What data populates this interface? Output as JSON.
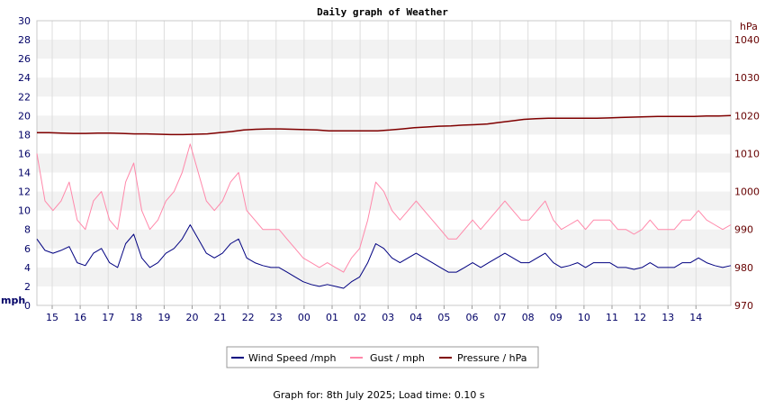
{
  "chart_data": {
    "type": "line",
    "title": "Daily graph of Weather",
    "left_axis": {
      "unit": "mph",
      "ylim": [
        0,
        30
      ],
      "ticks": [
        "0",
        "2",
        "4",
        "6",
        "8",
        "10",
        "12",
        "14",
        "16",
        "18",
        "20",
        "22",
        "24",
        "26",
        "28",
        "30"
      ],
      "color": "#000066"
    },
    "right_axis": {
      "unit": "hPa",
      "ylim": [
        970,
        1045
      ],
      "ticks": [
        "970",
        "980",
        "990",
        "1000",
        "1010",
        "1020",
        "1030",
        "1040"
      ],
      "color": "#660000"
    },
    "x_ticks": [
      "15",
      "16",
      "17",
      "18",
      "19",
      "20",
      "21",
      "22",
      "23",
      "00",
      "01",
      "02",
      "03",
      "04",
      "05",
      "06",
      "07",
      "08",
      "09",
      "10",
      "11",
      "12",
      "13",
      "14"
    ],
    "grid": true,
    "series": [
      {
        "name": "Wind Speed /mph",
        "color": "#000080",
        "axis": "left",
        "values": [
          7.0,
          5.8,
          5.5,
          5.8,
          6.2,
          4.5,
          4.2,
          5.5,
          6.0,
          4.5,
          4.0,
          6.5,
          7.5,
          5.0,
          4.0,
          4.5,
          5.5,
          6.0,
          7.0,
          8.5,
          7.0,
          5.5,
          5.0,
          5.5,
          6.5,
          7.0,
          5.0,
          4.5,
          4.2,
          4.0,
          4.0,
          3.5,
          3.0,
          2.5,
          2.2,
          2.0,
          2.2,
          2.0,
          1.8,
          2.5,
          3.0,
          4.5,
          6.5,
          6.0,
          5.0,
          4.5,
          5.0,
          5.5,
          5.0,
          4.5,
          4.0,
          3.5,
          3.5,
          4.0,
          4.5,
          4.0,
          4.5,
          5.0,
          5.5,
          5.0,
          4.5,
          4.5,
          5.0,
          5.5,
          4.5,
          4.0,
          4.2,
          4.5,
          4.0,
          4.5,
          4.5,
          4.5,
          4.0,
          4.0,
          3.8,
          4.0,
          4.5,
          4.0,
          4.0,
          4.0,
          4.5,
          4.5,
          5.0,
          4.5,
          4.2,
          4.0,
          4.2
        ]
      },
      {
        "name": "Gust / mph",
        "color": "#ff88aa",
        "axis": "left",
        "values": [
          16,
          11,
          10,
          11,
          13,
          9,
          8,
          11,
          12,
          9,
          8,
          13,
          15,
          10,
          8,
          9,
          11,
          12,
          14,
          17,
          14,
          11,
          10,
          11,
          13,
          14,
          10,
          9,
          8,
          8,
          8,
          7,
          6,
          5,
          4.5,
          4,
          4.5,
          4,
          3.5,
          5,
          6,
          9,
          13,
          12,
          10,
          9,
          10,
          11,
          10,
          9,
          8,
          7,
          7,
          8,
          9,
          8,
          9,
          10,
          11,
          10,
          9,
          9,
          10,
          11,
          9,
          8,
          8.5,
          9,
          8,
          9,
          9,
          9,
          8,
          8,
          7.5,
          8,
          9,
          8,
          8,
          8,
          9,
          9,
          10,
          9,
          8.5,
          8,
          8.5
        ]
      },
      {
        "name": "Pressure / hPa",
        "color": "#800000",
        "axis": "right",
        "values": [
          1015.5,
          1015.5,
          1015.4,
          1015.3,
          1015.3,
          1015.4,
          1015.4,
          1015.3,
          1015.2,
          1015.2,
          1015.1,
          1015.0,
          1015.0,
          1015.1,
          1015.2,
          1015.5,
          1015.8,
          1016.2,
          1016.4,
          1016.5,
          1016.5,
          1016.4,
          1016.3,
          1016.2,
          1016.0,
          1016.0,
          1016.0,
          1016.0,
          1016.0,
          1016.2,
          1016.5,
          1016.8,
          1017.0,
          1017.2,
          1017.3,
          1017.5,
          1017.6,
          1017.8,
          1018.2,
          1018.6,
          1019.0,
          1019.2,
          1019.3,
          1019.3,
          1019.3,
          1019.3,
          1019.3,
          1019.4,
          1019.5,
          1019.6,
          1019.7,
          1019.8,
          1019.8,
          1019.8,
          1019.8,
          1019.9,
          1019.9,
          1020.0
        ]
      }
    ],
    "legend_position": "bottom"
  },
  "footer": {
    "text": "Graph for: 8th July 2025; Load time: 0.10 s"
  }
}
